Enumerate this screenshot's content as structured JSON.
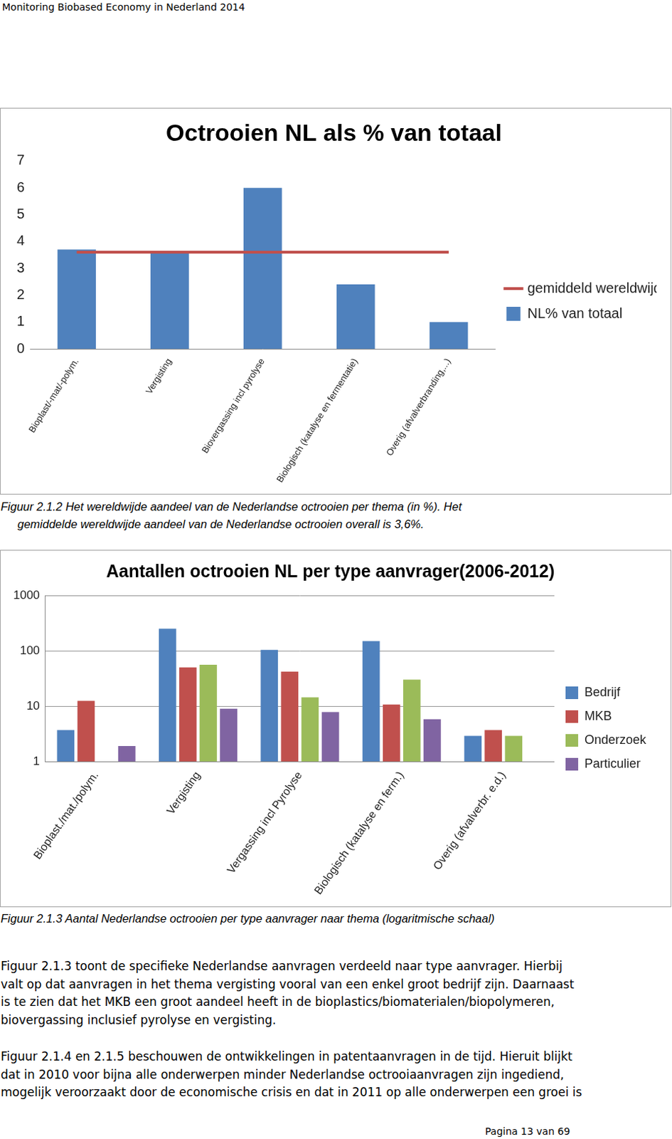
{
  "header": "Monitoring Biobased Economy in Nederland 2014",
  "chart_data": [
    {
      "type": "bar",
      "title": "Octrooien NL als % van totaal",
      "categories": [
        "Bioplast/-mat/-polym.",
        "Vergisting",
        "Biovergassing incl pyrolyse",
        "Biologisch (katalyse en fermentatie)",
        "Overig (afvalverbranding,...)"
      ],
      "series": [
        {
          "name": "NL% van totaal",
          "color": "#4f81bd",
          "values": [
            3.7,
            3.6,
            6.0,
            2.4,
            1.0
          ]
        },
        {
          "name": "gemiddeld wereldwijd",
          "color": "#c0504d",
          "type": "line",
          "values": [
            3.6,
            3.6,
            3.6,
            3.6,
            3.6
          ]
        }
      ],
      "ylim": [
        0,
        7
      ],
      "yticks": [
        0,
        1,
        2,
        3,
        4,
        5,
        6,
        7
      ],
      "grid": false,
      "legend": "right"
    },
    {
      "type": "bar",
      "title": "Aantallen octrooien NL per type aanvrager(2006-2012)",
      "categories": [
        "Bioplast./mat./polym.",
        "Vergisting",
        "Vergassing incl Pyrolyse",
        "Biologisch (katalyse en ferm.)",
        "Overig (afvalverbr. e.d.)"
      ],
      "series": [
        {
          "name": "Bedrijf",
          "color": "#4f81bd",
          "values": [
            3.7,
            250,
            104,
            149,
            2.9
          ]
        },
        {
          "name": "MKB",
          "color": "#c0504d",
          "values": [
            12.5,
            50,
            42,
            10.7,
            3.7
          ]
        },
        {
          "name": "Onderzoek",
          "color": "#9bbb59",
          "values": [
            null,
            56,
            14.4,
            30,
            2.9
          ]
        },
        {
          "name": "Particulier",
          "color": "#8064a2",
          "values": [
            1.9,
            9,
            7.8,
            5.8,
            null
          ]
        }
      ],
      "log": "y",
      "ylim": [
        1,
        1000
      ],
      "yticks": [
        1,
        10,
        100,
        1000
      ],
      "grid": true,
      "legend": "right"
    }
  ],
  "captions": [
    [
      "Figuur 2.1.2 Het wereldwijde aandeel van de Nederlandse octrooien per thema (in %). Het",
      "gemiddelde wereldwijde aandeel van de Nederlandse octrooien overall is 3,6%."
    ],
    [
      "Figuur 2.1.3 Aantal Nederlandse octrooien per type aanvrager naar thema (logaritmische schaal)"
    ]
  ],
  "paragraphs": [
    [
      "Figuur 2.1.3 toont de specifieke Nederlandse aanvragen verdeeld naar type  aanvrager. Hierbij",
      "valt op dat aanvragen in het thema vergisting  vooral van een enkel groot bedrijf zijn. Daarnaast",
      "is te zien dat het MKB een groot aandeel heeft in de bioplastics/biomaterialen/biopolymeren,",
      "biovergassing inclusief pyrolyse en vergisting."
    ],
    [
      "Figuur 2.1.4 en 2.1.5 beschouwen de ontwikkelingen in patentaanvragen in de tijd. Hieruit blijkt",
      "dat in 2010 voor bijna alle onderwerpen minder Nederlandse octrooiaanvragen zijn ingediend,",
      "mogelijk veroorzaakt door de economische crisis en dat in 2011 op alle onderwerpen een groei is"
    ]
  ],
  "footer": "Pagina 13 van 69"
}
